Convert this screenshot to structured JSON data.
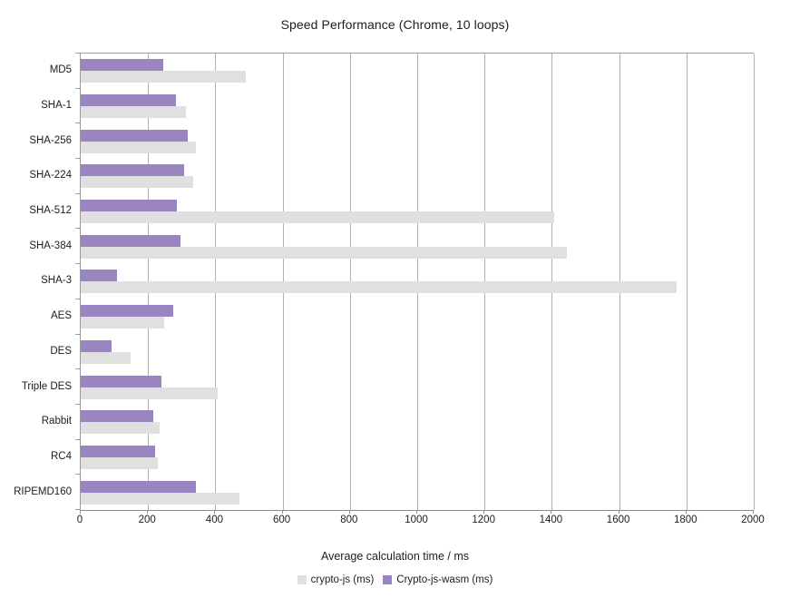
{
  "chart_data": {
    "type": "bar",
    "orientation": "horizontal",
    "title": "Speed Performance (Chrome, 10 loops)",
    "xlabel": "Average calculation time / ms",
    "xlim": [
      0,
      2000
    ],
    "xticks": [
      0,
      200,
      400,
      600,
      800,
      1000,
      1200,
      1400,
      1600,
      1800,
      2000
    ],
    "grid": true,
    "legend_position": "bottom",
    "categories": [
      "MD5",
      "SHA-1",
      "SHA-256",
      "SHA-224",
      "SHA-512",
      "SHA-384",
      "SHA-3",
      "AES",
      "DES",
      "Triple DES",
      "Rabbit",
      "RC4",
      "RIPEMD160"
    ],
    "series": [
      {
        "name": "crypto-js (ms)",
        "color": "#e0e0e0",
        "values": [
          490,
          314,
          341,
          333,
          1406,
          1446,
          1771,
          248,
          148,
          406,
          234,
          228,
          471
        ]
      },
      {
        "name": "Crypto-js-wasm (ms)",
        "color": "#9a85c1",
        "values": [
          245,
          284,
          317,
          307,
          285,
          296,
          107,
          276,
          92,
          239,
          215,
          220,
          343
        ]
      }
    ]
  }
}
